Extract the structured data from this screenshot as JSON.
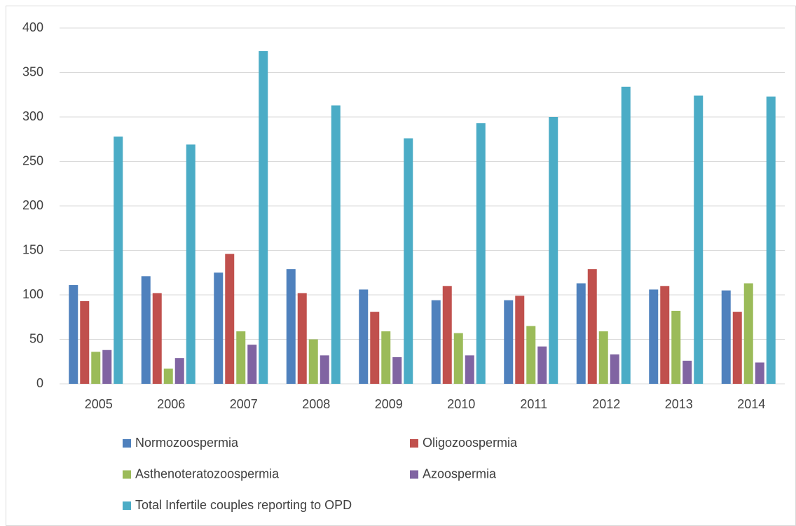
{
  "chart_data": {
    "type": "bar",
    "categories": [
      "2005",
      "2006",
      "2007",
      "2008",
      "2009",
      "2010",
      "2011",
      "2012",
      "2013",
      "2014"
    ],
    "series": [
      {
        "name": "Normozoospermia",
        "color": "#4f81bd",
        "values": [
          111,
          121,
          125,
          129,
          106,
          94,
          94,
          113,
          106,
          105
        ]
      },
      {
        "name": "Oligozoospermia",
        "color": "#c0504d",
        "values": [
          93,
          102,
          146,
          102,
          81,
          110,
          99,
          129,
          110,
          81
        ]
      },
      {
        "name": "Asthenoteratozoospermia",
        "color": "#9bbb59",
        "values": [
          36,
          17,
          59,
          50,
          59,
          57,
          65,
          59,
          82,
          113
        ]
      },
      {
        "name": "Azoospermia",
        "color": "#8064a2",
        "values": [
          38,
          29,
          44,
          32,
          30,
          32,
          42,
          33,
          26,
          24
        ]
      },
      {
        "name": "Total Infertile couples reporting to OPD",
        "color": "#4bacc6",
        "values": [
          278,
          269,
          374,
          313,
          276,
          293,
          300,
          334,
          324,
          323
        ]
      }
    ],
    "ylim": [
      0,
      400
    ],
    "yticks": [
      0,
      50,
      100,
      150,
      200,
      250,
      300,
      350,
      400
    ],
    "grid": true,
    "legend": "bottom"
  }
}
